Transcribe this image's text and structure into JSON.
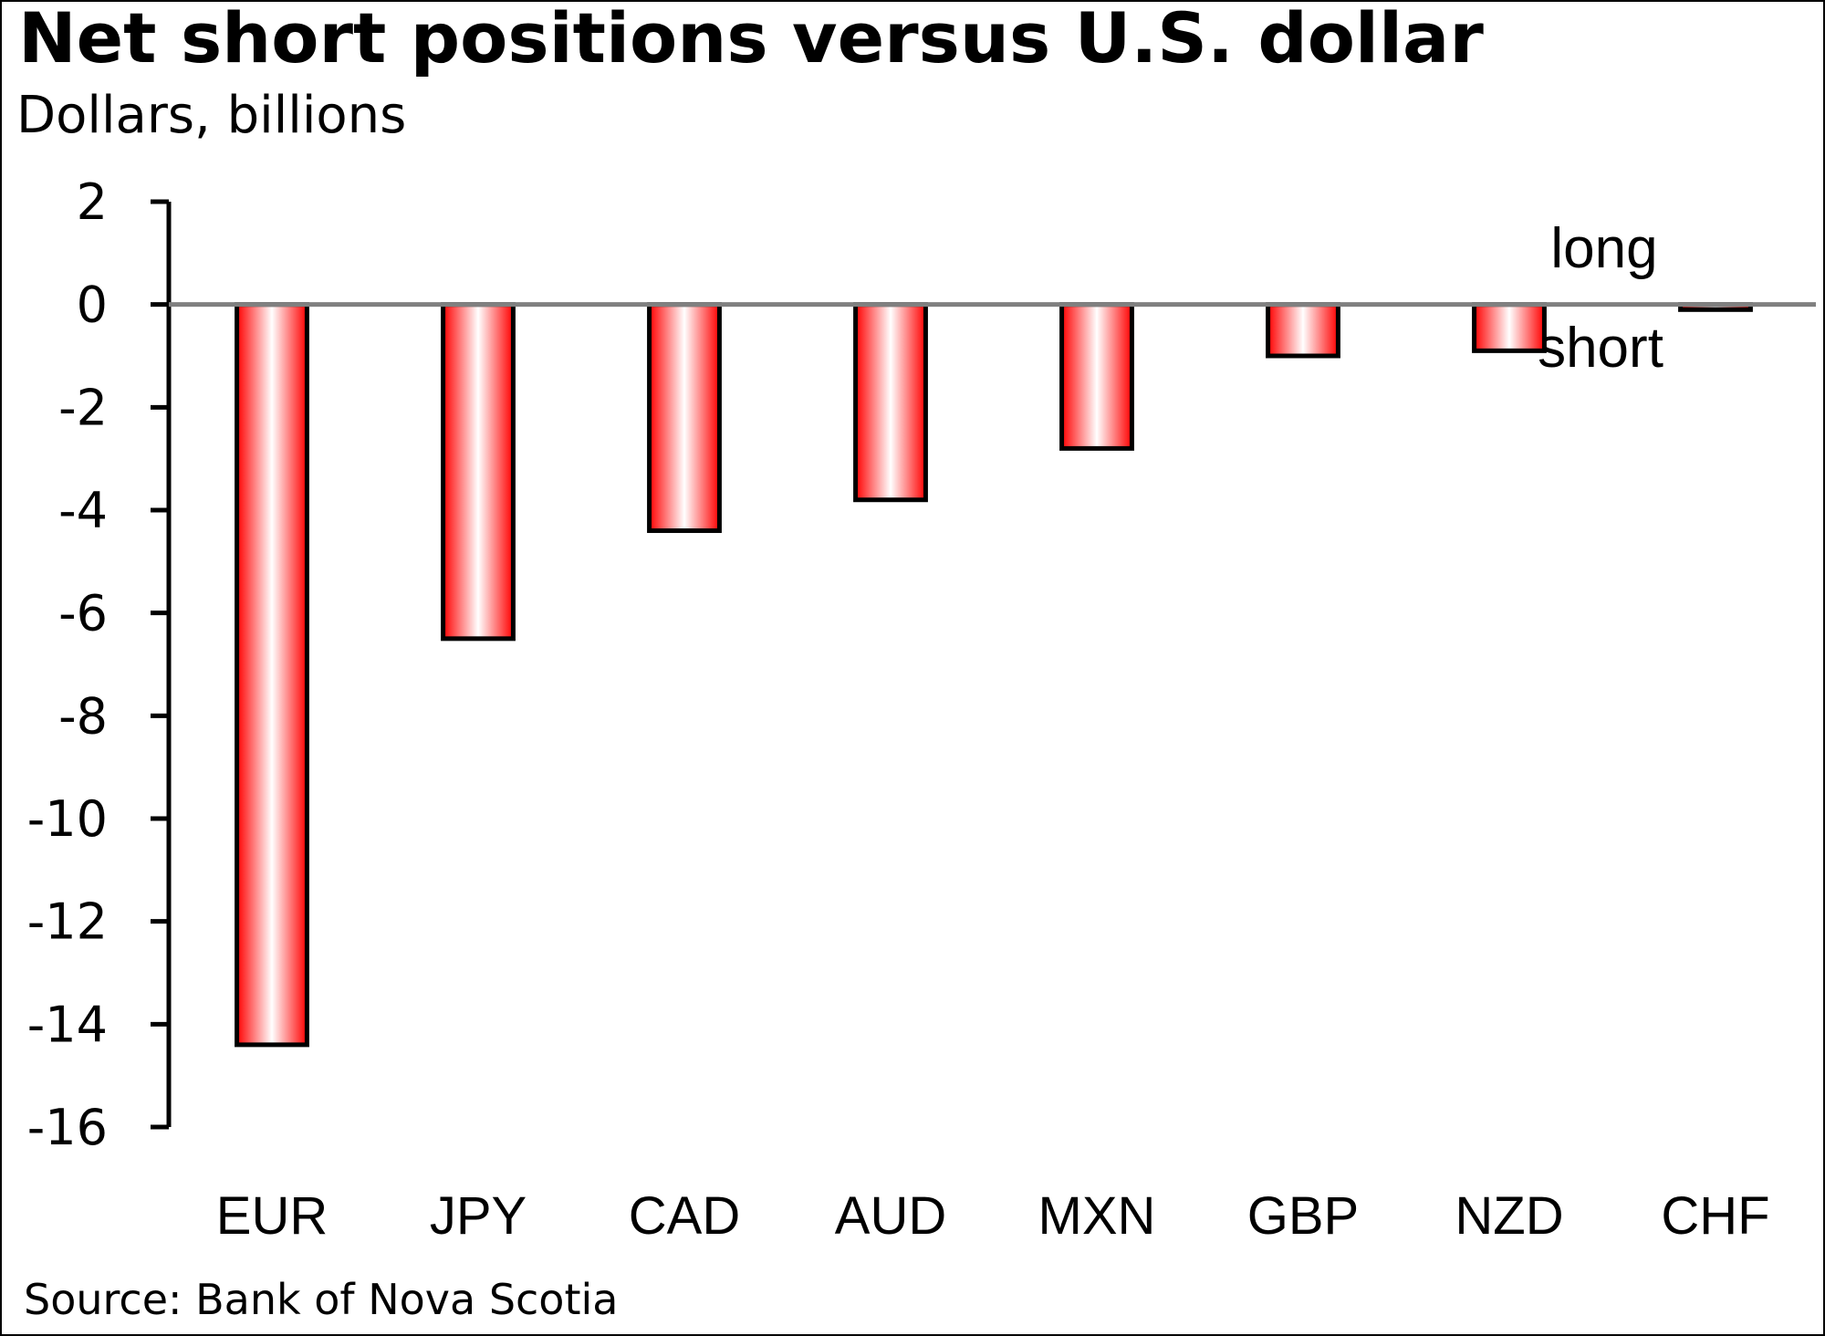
{
  "chart_data": {
    "type": "bar",
    "title": "Net short positions versus U.S. dollar",
    "subtitle": "Dollars, billions",
    "categories": [
      "EUR",
      "JPY",
      "CAD",
      "AUD",
      "MXN",
      "GBP",
      "NZD",
      "CHF"
    ],
    "values": [
      -14.4,
      -6.5,
      -4.4,
      -3.8,
      -2.8,
      -1.0,
      -0.9,
      -0.1
    ],
    "color": "#ff0000",
    "ylim": [
      -16,
      2
    ],
    "yticks": [
      -16,
      -14,
      -12,
      -10,
      -8,
      -6,
      -4,
      -2,
      0,
      2
    ],
    "annotations": [
      "long",
      "short"
    ],
    "source": "Source: Bank of Nova Scotia"
  }
}
